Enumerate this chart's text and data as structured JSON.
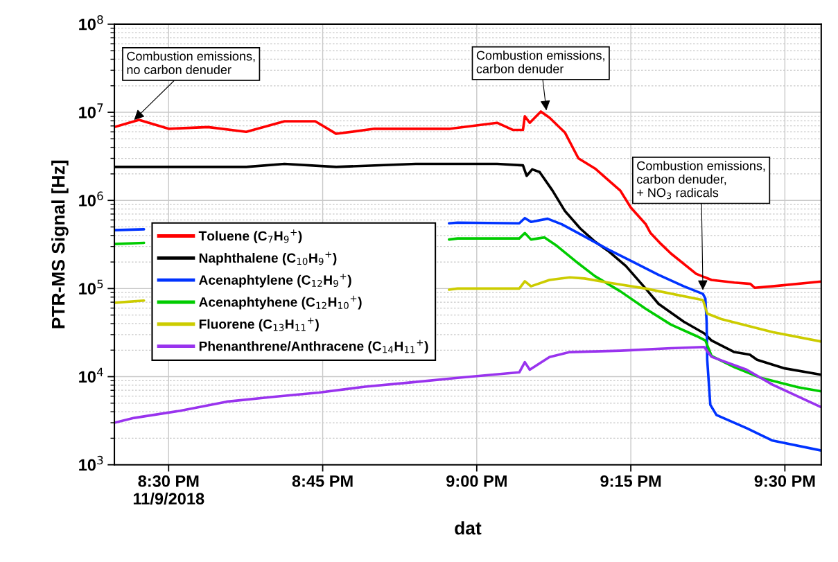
{
  "chart_data": {
    "type": "line",
    "xlabel": "dat",
    "ylabel": "PTR-MS Signal [Hz]",
    "log": "y",
    "grid": true,
    "legend": "left",
    "marker": "none",
    "line_style": "solid",
    "xlim": [
      20.412,
      21.559
    ],
    "xticks": [
      {
        "value": 20.5,
        "label": "8:30 PM\n11/9/2018"
      },
      {
        "value": 20.75,
        "label": "8:45 PM"
      },
      {
        "value": 21.0,
        "label": "9:00 PM"
      },
      {
        "value": 21.25,
        "label": "9:15 PM"
      },
      {
        "value": 21.5,
        "label": "9:30 PM"
      }
    ],
    "ylim": [
      1000,
      100000000
    ],
    "yticks": [
      {
        "value": 1000,
        "label": "10$^{3}$"
      },
      {
        "value": 10000,
        "label": "10$^{4}$"
      },
      {
        "value": 100000,
        "label": "10$^{5}$"
      },
      {
        "value": 1000000,
        "label": "10$^{6}$"
      },
      {
        "value": 10000000,
        "label": "10$^{7}$"
      },
      {
        "value": 100000000,
        "label": "10$^{8}$"
      }
    ],
    "annotations": [
      {
        "text": "Combustion emissions,\nno carbon denuder",
        "x": 20.444,
        "y": 8200000
      },
      {
        "text": "Combustion emissions,\ncarbon denuder",
        "x": 21.113,
        "y": 10500000
      },
      {
        "text": "Combustion emissions,\ncarbon denuder,\n+ NO$_{3}$ radicals",
        "x": 21.367,
        "y": 96000
      }
    ],
    "series": [
      {
        "name": "Toluene (C$_{7}$H$_{9}$$^{+}$)",
        "color": "#ff0000",
        "x": [
          20.412,
          20.452,
          20.5,
          20.564,
          20.626,
          20.688,
          20.738,
          20.772,
          20.834,
          20.901,
          20.957,
          21.033,
          21.059,
          21.075,
          21.078,
          21.086,
          21.104,
          21.118,
          21.143,
          21.165,
          21.192,
          21.233,
          21.25,
          21.274,
          21.282,
          21.299,
          21.315,
          21.356,
          21.381,
          21.418,
          21.444,
          21.451,
          21.48,
          21.559
        ],
        "values": [
          6800000,
          8200000,
          6500000,
          6800000,
          6000000,
          7900000,
          7900000,
          5700000,
          6500000,
          6500000,
          6500000,
          7600000,
          6300000,
          6300000,
          9000000,
          7600000,
          10200000,
          8700000,
          5900000,
          3000000,
          2300000,
          1290000,
          830000,
          540000,
          426000,
          320000,
          250000,
          147000,
          125000,
          117000,
          113000,
          102000,
          106000,
          120000
        ]
      },
      {
        "name": "Naphthalene (C$_{10}$H$_{9}$$^{+}$)",
        "color": "#000000",
        "x": [
          20.412,
          20.626,
          20.688,
          20.772,
          20.901,
          21.033,
          21.075,
          21.081,
          21.09,
          21.102,
          21.123,
          21.143,
          21.168,
          21.192,
          21.213,
          21.242,
          21.274,
          21.295,
          21.336,
          21.369,
          21.381,
          21.418,
          21.443,
          21.455,
          21.5,
          21.559
        ],
        "values": [
          2400000,
          2400000,
          2600000,
          2400000,
          2600000,
          2600000,
          2500000,
          1900000,
          2250000,
          2100000,
          1290000,
          760000,
          480000,
          340000,
          268000,
          180000,
          100000,
          67000,
          42000,
          31000,
          25700,
          19000,
          17800,
          15500,
          12400,
          10500
        ]
      },
      {
        "name": "Acenaphtylene (C$_{12}$H$_{9}$$^{+}$)",
        "color": "#0033ff",
        "x": [
          20.412,
          20.46,
          20.7,
          20.955,
          20.969,
          21.069,
          21.078,
          21.088,
          21.115,
          21.138,
          21.172,
          21.213,
          21.254,
          21.295,
          21.336,
          21.367,
          21.371,
          21.373,
          21.374,
          21.379,
          21.389,
          21.438,
          21.48,
          21.559
        ],
        "values": [
          460000,
          470000,
          null,
          550000,
          560000,
          550000,
          630000,
          570000,
          620000,
          536000,
          400000,
          278000,
          200000,
          143000,
          106000,
          87000,
          77000,
          42000,
          15500,
          4800,
          3670,
          2600,
          1880,
          1450
        ]
      },
      {
        "name": "Acenaphtyhene (C$_{12}$H$_{10}$$^{+}$)",
        "color": "#00cc00",
        "x": [
          20.412,
          20.46,
          20.7,
          20.955,
          20.969,
          21.069,
          21.078,
          21.088,
          21.11,
          21.13,
          21.16,
          21.192,
          21.233,
          21.274,
          21.315,
          21.356,
          21.371,
          21.381,
          21.418,
          21.459,
          21.521,
          21.559
        ],
        "values": [
          320000,
          330000,
          null,
          360000,
          370000,
          370000,
          426000,
          360000,
          380000,
          305000,
          205000,
          138000,
          93000,
          59000,
          39000,
          29000,
          25700,
          17200,
          12800,
          9800,
          7600,
          6800
        ]
      },
      {
        "name": "Fluorene (C$_{13}$H$_{11}$$^{+}$)",
        "color": "#cccc00",
        "x": [
          20.412,
          20.46,
          20.7,
          20.955,
          20.969,
          21.069,
          21.078,
          21.088,
          21.118,
          21.151,
          21.175,
          21.213,
          21.274,
          21.367,
          21.374,
          21.397,
          21.48,
          21.559
        ],
        "values": [
          69000,
          73000,
          null,
          97000,
          100000,
          100000,
          121000,
          106000,
          125000,
          134000,
          130000,
          117000,
          100000,
          74000,
          52000,
          45000,
          32000,
          25000
        ]
      },
      {
        "name": "Phenanthrene/Anthracene (C$_{14}$H$_{11}$$^{+}$)",
        "color": "#9933ee",
        "x": [
          20.412,
          20.444,
          20.519,
          20.594,
          20.669,
          20.744,
          20.819,
          20.893,
          20.969,
          21.069,
          21.078,
          21.086,
          21.118,
          21.151,
          21.233,
          21.315,
          21.369,
          21.381,
          21.438,
          21.48,
          21.559
        ],
        "values": [
          3000,
          3400,
          4100,
          5200,
          5900,
          6600,
          7700,
          8600,
          9700,
          11200,
          14600,
          12000,
          16700,
          19000,
          19700,
          21000,
          21700,
          16800,
          12000,
          8100,
          4500
        ]
      }
    ]
  }
}
